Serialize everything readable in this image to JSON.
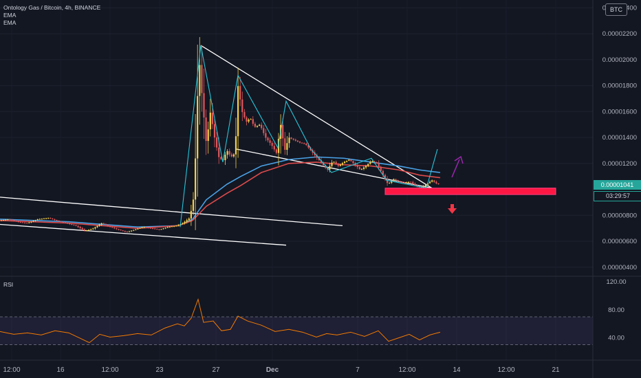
{
  "header": {
    "symbol_line": "Ontology Gas / Bitcoin, 4h, BINANCE",
    "indicators": [
      "EMA",
      "EMA"
    ],
    "currency_button": "BTC"
  },
  "price_tags": {
    "last_price": "0.00001041",
    "countdown": "03:29:57"
  },
  "rsi_panel": {
    "label": "RSI"
  },
  "colors": {
    "background": "#131722",
    "bull": "#f5d04a",
    "bear": "#e0575b",
    "ema_fast": "#e04b4b",
    "ema_slow": "#4aa3e8",
    "trendline": "#ffffff",
    "zigzag": "#26c6da",
    "support_zone": "#ff1744",
    "rsi_line": "#f57c00",
    "rsi_band": "#7e57c2",
    "arrow_up": "#9c27b0",
    "arrow_down": "#f23645"
  },
  "chart_data": {
    "type": "candlestick",
    "title": "Ontology Gas / Bitcoin, 4h, BINANCE",
    "y_axis": {
      "ticks": [
        "0.00002400",
        "0.00002200",
        "0.00002000",
        "0.00001800",
        "0.00001600",
        "0.00001400",
        "0.00001200",
        "0.00000800",
        "0.00000600",
        "0.00000400"
      ],
      "range": [
        3.3e-06,
        2.46e-05
      ]
    },
    "rsi_axis": {
      "ticks": [
        "120.00",
        "80.00",
        "40.00"
      ],
      "range": [
        8,
        128
      ]
    },
    "x_axis": {
      "ticks": [
        "12:00",
        "16",
        "12:00",
        "23",
        "27",
        "Dec",
        "7",
        "12:00",
        "14",
        "12:00",
        "21"
      ]
    },
    "price_path": [
      [
        0,
        7.6e-06
      ],
      [
        12,
        7.7e-06
      ],
      [
        25,
        7.5e-06
      ],
      [
        40,
        7.4e-06
      ],
      [
        55,
        7.7e-06
      ],
      [
        70,
        7.8e-06
      ],
      [
        82,
        7.6e-06
      ],
      [
        96,
        7.4e-06
      ],
      [
        110,
        7.2e-06
      ],
      [
        124,
        6.8e-06
      ],
      [
        136,
        7e-06
      ],
      [
        148,
        7.4e-06
      ],
      [
        160,
        7.1e-06
      ],
      [
        172,
        6.9e-06
      ],
      [
        184,
        6.7e-06
      ],
      [
        196,
        6.9e-06
      ],
      [
        208,
        7.1e-06
      ],
      [
        220,
        7e-06
      ],
      [
        232,
        6.9e-06
      ],
      [
        244,
        7.1e-06
      ],
      [
        256,
        7.2e-06
      ],
      [
        266,
        7.4e-06
      ],
      [
        276,
        7.8e-06
      ],
      [
        282,
        9.5e-06
      ],
      [
        286,
        1.5e-05
      ],
      [
        289,
        2.05e-05
      ],
      [
        294,
        1.7e-05
      ],
      [
        300,
        1.35e-05
      ],
      [
        306,
        1.6e-05
      ],
      [
        312,
        1.4e-05
      ],
      [
        318,
        1.25e-05
      ],
      [
        324,
        1.22e-05
      ],
      [
        330,
        1.3e-05
      ],
      [
        336,
        1.25e-05
      ],
      [
        342,
        1.28e-05
      ],
      [
        346,
        1.8e-05
      ],
      [
        352,
        1.6e-05
      ],
      [
        358,
        1.52e-05
      ],
      [
        364,
        1.55e-05
      ],
      [
        370,
        1.48e-05
      ],
      [
        378,
        1.5e-05
      ],
      [
        386,
        1.4e-05
      ],
      [
        394,
        1.35e-05
      ],
      [
        402,
        1.28e-05
      ],
      [
        408,
        1.5e-05
      ],
      [
        414,
        1.3e-05
      ],
      [
        420,
        1.4e-05
      ],
      [
        428,
        1.38e-05
      ],
      [
        436,
        1.36e-05
      ],
      [
        444,
        1.35e-05
      ],
      [
        452,
        1.3e-05
      ],
      [
        460,
        1.25e-05
      ],
      [
        468,
        1.2e-05
      ],
      [
        476,
        1.15e-05
      ],
      [
        484,
        1.22e-05
      ],
      [
        492,
        1.18e-05
      ],
      [
        500,
        1.21e-05
      ],
      [
        508,
        1.23e-05
      ],
      [
        516,
        1.19e-05
      ],
      [
        524,
        1.15e-05
      ],
      [
        532,
        1.18e-05
      ],
      [
        540,
        1.22e-05
      ],
      [
        548,
        1.2e-05
      ],
      [
        556,
        1.12e-05
      ],
      [
        564,
        1.04e-05
      ],
      [
        572,
        1.08e-05
      ],
      [
        580,
        1.06e-05
      ],
      [
        588,
        1.05e-05
      ],
      [
        596,
        1.06e-05
      ],
      [
        604,
        1.03e-05
      ],
      [
        612,
        1.01e-05
      ],
      [
        620,
        1.04e-05
      ],
      [
        628,
        1.07e-05
      ],
      [
        636,
        1.04e-05
      ],
      [
        640,
        1.04e-05
      ]
    ],
    "ema_fast_path": [
      [
        0,
        7.6e-06
      ],
      [
        100,
        7.4e-06
      ],
      [
        200,
        7e-06
      ],
      [
        260,
        7.2e-06
      ],
      [
        280,
        7.6e-06
      ],
      [
        300,
        8.7e-06
      ],
      [
        330,
        9.7e-06
      ],
      [
        350,
        1.03e-05
      ],
      [
        380,
        1.13e-05
      ],
      [
        420,
        1.2e-05
      ],
      [
        460,
        1.21e-05
      ],
      [
        500,
        1.19e-05
      ],
      [
        540,
        1.18e-05
      ],
      [
        580,
        1.15e-05
      ],
      [
        610,
        1.11e-05
      ],
      [
        640,
        1.09e-05
      ]
    ],
    "ema_slow_path": [
      [
        0,
        7.7e-06
      ],
      [
        100,
        7.5e-06
      ],
      [
        200,
        7.1e-06
      ],
      [
        260,
        7.2e-06
      ],
      [
        280,
        7.7e-06
      ],
      [
        300,
        9.2e-06
      ],
      [
        330,
        1.04e-05
      ],
      [
        350,
        1.1e-05
      ],
      [
        380,
        1.18e-05
      ],
      [
        420,
        1.23e-05
      ],
      [
        460,
        1.25e-05
      ],
      [
        500,
        1.24e-05
      ],
      [
        540,
        1.21e-05
      ],
      [
        580,
        1.18e-05
      ],
      [
        610,
        1.15e-05
      ],
      [
        640,
        1.13e-05
      ]
    ],
    "trendlines": [
      {
        "from": [
          0,
          9.4e-06
        ],
        "to": [
          498,
          7.2e-06
        ]
      },
      {
        "from": [
          0,
          7.3e-06
        ],
        "to": [
          416,
          5.7e-06
        ]
      },
      {
        "from": [
          292,
          2.11e-05
        ],
        "to": [
          628,
          1.01e-05
        ]
      },
      {
        "from": [
          344,
          1.31e-05
        ],
        "to": [
          628,
          1.01e-05
        ]
      }
    ],
    "zigzag_path": [
      [
        262,
        7.1e-06
      ],
      [
        292,
        2.11e-05
      ],
      [
        324,
        1.21e-05
      ],
      [
        346,
        1.88e-05
      ],
      [
        404,
        1.32e-05
      ],
      [
        416,
        1.68e-05
      ],
      [
        452,
        1.31e-05
      ],
      [
        482,
        1.13e-05
      ],
      [
        540,
        1.24e-05
      ],
      [
        562,
        1.07e-05
      ],
      [
        620,
        1.01e-05
      ],
      [
        636,
        1.31e-05
      ]
    ],
    "support_zone": {
      "x_range": [
        560,
        808
      ],
      "price_range": [
        9.6e-06,
        1.01e-05
      ]
    },
    "rsi_path": [
      [
        0,
        49
      ],
      [
        20,
        45
      ],
      [
        40,
        47
      ],
      [
        60,
        44
      ],
      [
        80,
        50
      ],
      [
        100,
        47
      ],
      [
        115,
        40
      ],
      [
        130,
        33
      ],
      [
        145,
        45
      ],
      [
        160,
        41
      ],
      [
        180,
        43
      ],
      [
        200,
        46
      ],
      [
        220,
        44
      ],
      [
        240,
        54
      ],
      [
        258,
        60
      ],
      [
        268,
        57
      ],
      [
        278,
        68
      ],
      [
        288,
        95
      ],
      [
        296,
        62
      ],
      [
        310,
        64
      ],
      [
        322,
        50
      ],
      [
        335,
        52
      ],
      [
        346,
        71
      ],
      [
        360,
        64
      ],
      [
        380,
        58
      ],
      [
        400,
        49
      ],
      [
        420,
        52
      ],
      [
        440,
        48
      ],
      [
        460,
        41
      ],
      [
        475,
        46
      ],
      [
        490,
        44
      ],
      [
        510,
        48
      ],
      [
        530,
        42
      ],
      [
        550,
        50
      ],
      [
        565,
        35
      ],
      [
        580,
        40
      ],
      [
        595,
        45
      ],
      [
        610,
        37
      ],
      [
        625,
        44
      ],
      [
        640,
        48
      ]
    ],
    "rsi_levels": [
      70,
      30
    ]
  }
}
